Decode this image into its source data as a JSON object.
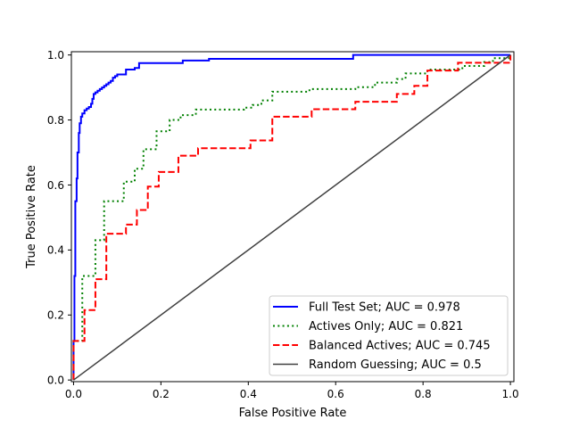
{
  "chart_data": {
    "type": "line",
    "title": "",
    "xlabel": "False Positive Rate",
    "ylabel": "True Positive Rate",
    "xlim": [
      -0.005,
      1.008
    ],
    "ylim": [
      -0.005,
      1.01
    ],
    "x_ticks": [
      0.0,
      0.2,
      0.4,
      0.6,
      0.8,
      1.0
    ],
    "y_ticks": [
      0.0,
      0.2,
      0.4,
      0.6,
      0.8,
      1.0
    ],
    "x_tick_labels": [
      "0.0",
      "0.2",
      "0.4",
      "0.6",
      "0.8",
      "1.0"
    ],
    "y_tick_labels": [
      "0.0",
      "0.2",
      "0.4",
      "0.6",
      "0.8",
      "1.0"
    ],
    "grid": false,
    "legend_position": "lower-right",
    "series": [
      {
        "name": "Full Test Set; AUC = 0.978",
        "color": "#0000ff",
        "style": "solid",
        "points": [
          [
            0.0,
            0.0
          ],
          [
            0.0,
            0.12
          ],
          [
            0.002,
            0.12
          ],
          [
            0.002,
            0.32
          ],
          [
            0.004,
            0.32
          ],
          [
            0.004,
            0.55
          ],
          [
            0.007,
            0.55
          ],
          [
            0.007,
            0.62
          ],
          [
            0.009,
            0.62
          ],
          [
            0.009,
            0.7
          ],
          [
            0.012,
            0.7
          ],
          [
            0.012,
            0.76
          ],
          [
            0.014,
            0.76
          ],
          [
            0.014,
            0.79
          ],
          [
            0.017,
            0.79
          ],
          [
            0.017,
            0.81
          ],
          [
            0.02,
            0.81
          ],
          [
            0.02,
            0.82
          ],
          [
            0.025,
            0.82
          ],
          [
            0.025,
            0.83
          ],
          [
            0.03,
            0.83
          ],
          [
            0.03,
            0.835
          ],
          [
            0.035,
            0.835
          ],
          [
            0.035,
            0.84
          ],
          [
            0.04,
            0.84
          ],
          [
            0.04,
            0.85
          ],
          [
            0.043,
            0.85
          ],
          [
            0.043,
            0.865
          ],
          [
            0.046,
            0.865
          ],
          [
            0.046,
            0.88
          ],
          [
            0.05,
            0.88
          ],
          [
            0.05,
            0.885
          ],
          [
            0.055,
            0.885
          ],
          [
            0.055,
            0.89
          ],
          [
            0.06,
            0.89
          ],
          [
            0.06,
            0.895
          ],
          [
            0.065,
            0.895
          ],
          [
            0.065,
            0.9
          ],
          [
            0.07,
            0.9
          ],
          [
            0.07,
            0.905
          ],
          [
            0.075,
            0.905
          ],
          [
            0.075,
            0.91
          ],
          [
            0.08,
            0.91
          ],
          [
            0.08,
            0.915
          ],
          [
            0.085,
            0.915
          ],
          [
            0.085,
            0.92
          ],
          [
            0.09,
            0.92
          ],
          [
            0.09,
            0.93
          ],
          [
            0.095,
            0.93
          ],
          [
            0.095,
            0.935
          ],
          [
            0.1,
            0.935
          ],
          [
            0.1,
            0.94
          ],
          [
            0.12,
            0.94
          ],
          [
            0.12,
            0.955
          ],
          [
            0.14,
            0.955
          ],
          [
            0.14,
            0.96
          ],
          [
            0.15,
            0.96
          ],
          [
            0.15,
            0.975
          ],
          [
            0.25,
            0.975
          ],
          [
            0.25,
            0.983
          ],
          [
            0.31,
            0.983
          ],
          [
            0.31,
            0.988
          ],
          [
            0.64,
            0.988
          ],
          [
            0.64,
            1.0
          ],
          [
            1.0,
            1.0
          ]
        ]
      },
      {
        "name": "Actives Only; AUC = 0.821",
        "color": "#008000",
        "style": "dotted",
        "points": [
          [
            0.0,
            0.0
          ],
          [
            0.0,
            0.12
          ],
          [
            0.02,
            0.12
          ],
          [
            0.02,
            0.32
          ],
          [
            0.05,
            0.32
          ],
          [
            0.05,
            0.43
          ],
          [
            0.07,
            0.43
          ],
          [
            0.07,
            0.55
          ],
          [
            0.115,
            0.55
          ],
          [
            0.115,
            0.61
          ],
          [
            0.14,
            0.61
          ],
          [
            0.14,
            0.65
          ],
          [
            0.16,
            0.65
          ],
          [
            0.16,
            0.71
          ],
          [
            0.19,
            0.71
          ],
          [
            0.19,
            0.765
          ],
          [
            0.22,
            0.765
          ],
          [
            0.22,
            0.8
          ],
          [
            0.245,
            0.8
          ],
          [
            0.245,
            0.815
          ],
          [
            0.28,
            0.815
          ],
          [
            0.28,
            0.832
          ],
          [
            0.39,
            0.832
          ],
          [
            0.39,
            0.838
          ],
          [
            0.41,
            0.838
          ],
          [
            0.41,
            0.846
          ],
          [
            0.43,
            0.846
          ],
          [
            0.43,
            0.86
          ],
          [
            0.455,
            0.86
          ],
          [
            0.455,
            0.887
          ],
          [
            0.54,
            0.887
          ],
          [
            0.54,
            0.895
          ],
          [
            0.645,
            0.895
          ],
          [
            0.645,
            0.901
          ],
          [
            0.69,
            0.901
          ],
          [
            0.69,
            0.915
          ],
          [
            0.74,
            0.915
          ],
          [
            0.74,
            0.926
          ],
          [
            0.76,
            0.926
          ],
          [
            0.76,
            0.943
          ],
          [
            0.81,
            0.943
          ],
          [
            0.81,
            0.955
          ],
          [
            0.89,
            0.955
          ],
          [
            0.89,
            0.966
          ],
          [
            0.94,
            0.966
          ],
          [
            0.94,
            0.978
          ],
          [
            0.96,
            0.978
          ],
          [
            0.96,
            0.99
          ],
          [
            1.0,
            0.99
          ],
          [
            1.0,
            1.0
          ]
        ]
      },
      {
        "name": "Balanced Actives; AUC = 0.745",
        "color": "#ff0000",
        "style": "dashed",
        "points": [
          [
            0.0,
            0.0
          ],
          [
            0.0,
            0.12
          ],
          [
            0.025,
            0.12
          ],
          [
            0.025,
            0.215
          ],
          [
            0.05,
            0.215
          ],
          [
            0.05,
            0.31
          ],
          [
            0.075,
            0.31
          ],
          [
            0.075,
            0.45
          ],
          [
            0.12,
            0.45
          ],
          [
            0.12,
            0.478
          ],
          [
            0.145,
            0.478
          ],
          [
            0.145,
            0.523
          ],
          [
            0.17,
            0.523
          ],
          [
            0.17,
            0.595
          ],
          [
            0.195,
            0.595
          ],
          [
            0.195,
            0.64
          ],
          [
            0.24,
            0.64
          ],
          [
            0.24,
            0.69
          ],
          [
            0.285,
            0.69
          ],
          [
            0.285,
            0.713
          ],
          [
            0.405,
            0.713
          ],
          [
            0.405,
            0.737
          ],
          [
            0.455,
            0.737
          ],
          [
            0.455,
            0.81
          ],
          [
            0.545,
            0.81
          ],
          [
            0.545,
            0.833
          ],
          [
            0.645,
            0.833
          ],
          [
            0.645,
            0.856
          ],
          [
            0.74,
            0.856
          ],
          [
            0.74,
            0.88
          ],
          [
            0.78,
            0.88
          ],
          [
            0.78,
            0.905
          ],
          [
            0.81,
            0.905
          ],
          [
            0.81,
            0.952
          ],
          [
            0.88,
            0.952
          ],
          [
            0.88,
            0.976
          ],
          [
            1.0,
            0.976
          ],
          [
            1.0,
            1.0
          ]
        ]
      },
      {
        "name": "Random Guessing; AUC = 0.5",
        "color": "#404040",
        "style": "solid",
        "points": [
          [
            0.0,
            0.0
          ],
          [
            1.0,
            1.0
          ]
        ]
      }
    ]
  }
}
